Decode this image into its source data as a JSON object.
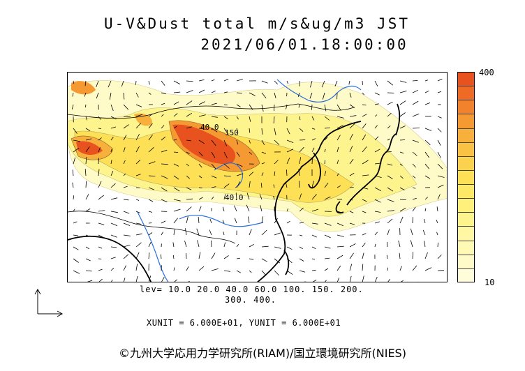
{
  "title": {
    "line1": "U-V&Dust total m/s&ug/m3 JST",
    "line2": "2021/06/01.18:00:00"
  },
  "map": {
    "region": "East Asia",
    "contour_labels": [
      "40.0",
      "150",
      "40.0"
    ]
  },
  "colorbar": {
    "max_label": "400",
    "min_label": "10",
    "colors": [
      "#e8521f",
      "#ee6a25",
      "#f2822b",
      "#f59a33",
      "#f8b03c",
      "#fac245",
      "#fbd24d",
      "#fde056",
      "#fee966",
      "#fef07a",
      "#fef48e",
      "#fff7a3",
      "#fff9b6",
      "#fffbc8",
      "#fffdda"
    ]
  },
  "levels": {
    "line1": "lev= 10.0 20.0 40.0 60.0 100. 150. 200.",
    "line2": "300. 400."
  },
  "units": "XUNIT = 6.000E+01, YUNIT = 6.000E+01",
  "copyright": "©九州大学応用力学研究所(RIAM)/国立環境研究所(NIES)"
}
